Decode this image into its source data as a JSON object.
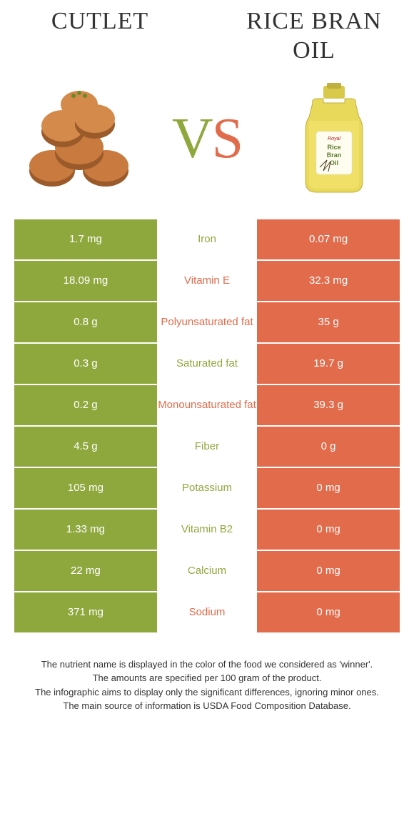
{
  "header": {
    "left_title": "Cutlet",
    "right_title": "Rice bran oil",
    "vs_left": "V",
    "vs_right": "S"
  },
  "colors": {
    "green": "#8fa83e",
    "orange": "#e26b4b",
    "bg": "#ffffff"
  },
  "rows": [
    {
      "left": "1.7 mg",
      "mid": "Iron",
      "right": "0.07 mg",
      "winner": "green"
    },
    {
      "left": "18.09 mg",
      "mid": "Vitamin E",
      "right": "32.3 mg",
      "winner": "orange"
    },
    {
      "left": "0.8 g",
      "mid": "Polyunsaturated fat",
      "right": "35 g",
      "winner": "orange"
    },
    {
      "left": "0.3 g",
      "mid": "Saturated fat",
      "right": "19.7 g",
      "winner": "green"
    },
    {
      "left": "0.2 g",
      "mid": "Monounsaturated fat",
      "right": "39.3 g",
      "winner": "orange"
    },
    {
      "left": "4.5 g",
      "mid": "Fiber",
      "right": "0 g",
      "winner": "green"
    },
    {
      "left": "105 mg",
      "mid": "Potassium",
      "right": "0 mg",
      "winner": "green"
    },
    {
      "left": "1.33 mg",
      "mid": "Vitamin B2",
      "right": "0 mg",
      "winner": "green"
    },
    {
      "left": "22 mg",
      "mid": "Calcium",
      "right": "0 mg",
      "winner": "green"
    },
    {
      "left": "371 mg",
      "mid": "Sodium",
      "right": "0 mg",
      "winner": "orange"
    }
  ],
  "footnotes": {
    "line1": "The nutrient name is displayed in the color of the food we considered as 'winner'.",
    "line2": "The amounts are specified per 100 gram of the product.",
    "line3": "The infographic aims to display only the significant differences, ignoring minor ones.",
    "line4": "The main source of information is USDA Food Composition Database."
  }
}
